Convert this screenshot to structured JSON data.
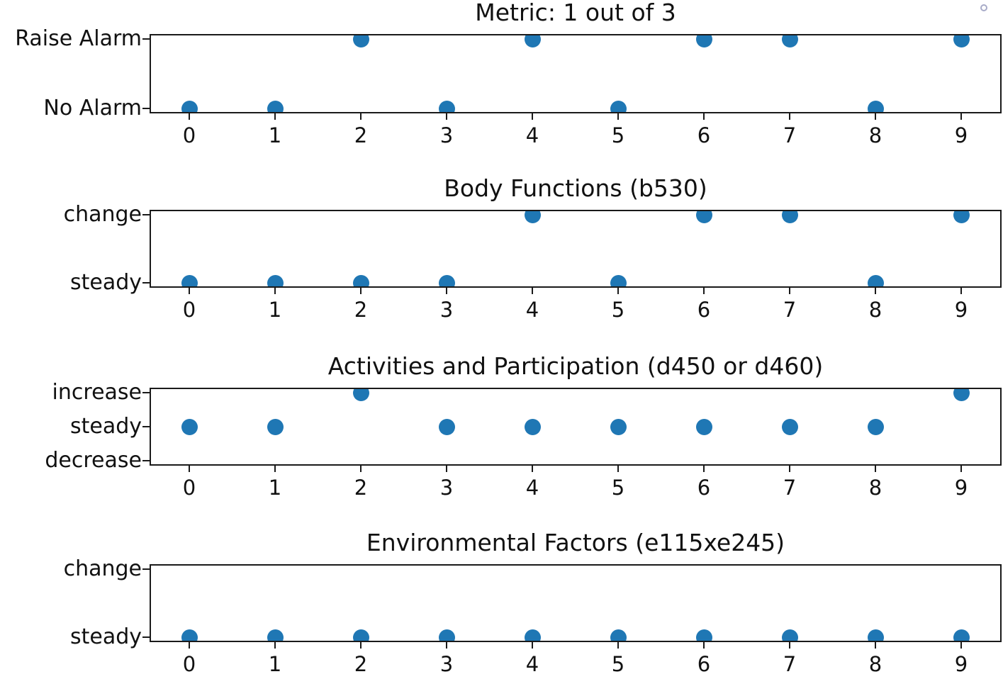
{
  "figure": {
    "background": "#ffffff",
    "axis_color": "#1a1a1a",
    "marker_color": "#1f77b4",
    "corner_ring_color": "#a8abc8"
  },
  "chart_data": [
    {
      "type": "scatter",
      "title": "Metric: 1 out of 3",
      "x": [
        0,
        1,
        2,
        3,
        4,
        5,
        6,
        7,
        8,
        9
      ],
      "y": [
        "No Alarm",
        "No Alarm",
        "Raise Alarm",
        "No Alarm",
        "Raise Alarm",
        "No Alarm",
        "Raise Alarm",
        "Raise Alarm",
        "No Alarm",
        "Raise Alarm"
      ],
      "y_categories_top_to_bottom": [
        "Raise Alarm",
        "No Alarm"
      ],
      "xlim": [
        -0.45,
        9.45
      ],
      "xticks": [
        0,
        1,
        2,
        3,
        4,
        5,
        6,
        7,
        8,
        9
      ],
      "grid": false,
      "legend": false,
      "marker": "circle"
    },
    {
      "type": "scatter",
      "title": "Body Functions (b530)",
      "x": [
        0,
        1,
        2,
        3,
        4,
        5,
        6,
        7,
        8,
        9
      ],
      "y": [
        "steady",
        "steady",
        "steady",
        "steady",
        "change",
        "steady",
        "change",
        "change",
        "steady",
        "change"
      ],
      "y_categories_top_to_bottom": [
        "change",
        "steady"
      ],
      "xlim": [
        -0.45,
        9.45
      ],
      "xticks": [
        0,
        1,
        2,
        3,
        4,
        5,
        6,
        7,
        8,
        9
      ],
      "grid": false,
      "legend": false,
      "marker": "circle"
    },
    {
      "type": "scatter",
      "title": "Activities and Participation (d450 or d460)",
      "x": [
        0,
        1,
        2,
        3,
        4,
        5,
        6,
        7,
        8,
        9
      ],
      "y": [
        "steady",
        "steady",
        "increase",
        "steady",
        "steady",
        "steady",
        "steady",
        "steady",
        "steady",
        "increase"
      ],
      "y_categories_top_to_bottom": [
        "increase",
        "steady",
        "decrease"
      ],
      "xlim": [
        -0.45,
        9.45
      ],
      "xticks": [
        0,
        1,
        2,
        3,
        4,
        5,
        6,
        7,
        8,
        9
      ],
      "grid": false,
      "legend": false,
      "marker": "circle"
    },
    {
      "type": "scatter",
      "title": "Environmental Factors (e115xe245)",
      "x": [
        0,
        1,
        2,
        3,
        4,
        5,
        6,
        7,
        8,
        9
      ],
      "y": [
        "steady",
        "steady",
        "steady",
        "steady",
        "steady",
        "steady",
        "steady",
        "steady",
        "steady",
        "steady"
      ],
      "y_categories_top_to_bottom": [
        "change",
        "steady"
      ],
      "xlim": [
        -0.45,
        9.45
      ],
      "xticks": [
        0,
        1,
        2,
        3,
        4,
        5,
        6,
        7,
        8,
        9
      ],
      "grid": false,
      "legend": false,
      "marker": "circle"
    }
  ]
}
